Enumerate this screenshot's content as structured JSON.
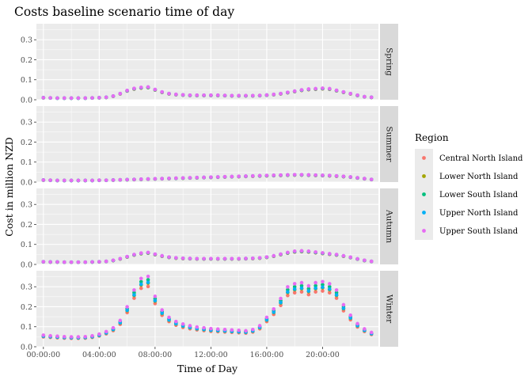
{
  "chart_data": {
    "type": "scatter",
    "title": "Costs baseline scenario time of day",
    "xlabel": "Time of Day",
    "ylabel": "Cost in million NZD",
    "x_tick_labels": [
      "00:00:00",
      "04:00:00",
      "08:00:00",
      "12:00:00",
      "16:00:00",
      "20:00:00"
    ],
    "x_tick_hours": [
      0,
      4,
      8,
      12,
      16,
      20
    ],
    "xlim_hours": [
      -0.5,
      24.0
    ],
    "ylim": [
      0,
      0.38
    ],
    "y_ticks": [
      0.0,
      0.1,
      0.2,
      0.3
    ],
    "y_tick_labels": [
      "0.0",
      "0.1",
      "0.2",
      "0.3"
    ],
    "grid": true,
    "legend_position": "right",
    "legend_title": "Region",
    "x_hours": [
      0.0,
      0.5,
      1.0,
      1.5,
      2.0,
      2.5,
      3.0,
      3.5,
      4.0,
      4.5,
      5.0,
      5.5,
      6.0,
      6.5,
      7.0,
      7.5,
      8.0,
      8.5,
      9.0,
      9.5,
      10.0,
      10.5,
      11.0,
      11.5,
      12.0,
      12.5,
      13.0,
      13.5,
      14.0,
      14.5,
      15.0,
      15.5,
      16.0,
      16.5,
      17.0,
      17.5,
      18.0,
      18.5,
      19.0,
      19.5,
      20.0,
      20.5,
      21.0,
      21.5,
      22.0,
      22.5,
      23.0,
      23.5
    ],
    "series": [
      {
        "name": "Central North Island",
        "color": "#F8766D",
        "offsets": [
          0.0,
          0.0,
          0.0,
          0.0
        ],
        "winter_scale": 0.9
      },
      {
        "name": "Lower North Island",
        "color": "#A3A500",
        "offsets": [
          0.0,
          0.0,
          0.0,
          0.0
        ],
        "winter_scale": 0.95
      },
      {
        "name": "Lower South Island",
        "color": "#00BF7D",
        "offsets": [
          0.0,
          0.0,
          0.0,
          0.0
        ],
        "winter_scale": 1.0
      },
      {
        "name": "Upper North Island",
        "color": "#00B0F6",
        "offsets": [
          0.0,
          0.0,
          0.0,
          0.0
        ],
        "winter_scale": 0.96
      },
      {
        "name": "Upper South Island",
        "color": "#E76BF3",
        "offsets": [
          0.0,
          0.0,
          0.0,
          0.0
        ],
        "winter_scale": 1.05
      }
    ],
    "facets": [
      {
        "label": "Spring",
        "values": [
          0.01,
          0.009,
          0.008,
          0.008,
          0.008,
          0.008,
          0.008,
          0.009,
          0.01,
          0.012,
          0.018,
          0.03,
          0.045,
          0.055,
          0.06,
          0.062,
          0.05,
          0.038,
          0.03,
          0.026,
          0.024,
          0.022,
          0.022,
          0.022,
          0.022,
          0.022,
          0.021,
          0.02,
          0.02,
          0.02,
          0.02,
          0.021,
          0.023,
          0.026,
          0.03,
          0.036,
          0.042,
          0.048,
          0.052,
          0.054,
          0.056,
          0.054,
          0.046,
          0.038,
          0.03,
          0.022,
          0.015,
          0.012
        ]
      },
      {
        "label": "Summer",
        "values": [
          0.01,
          0.009,
          0.008,
          0.008,
          0.008,
          0.008,
          0.008,
          0.008,
          0.009,
          0.009,
          0.01,
          0.011,
          0.012,
          0.013,
          0.014,
          0.015,
          0.016,
          0.017,
          0.018,
          0.019,
          0.02,
          0.021,
          0.022,
          0.023,
          0.024,
          0.025,
          0.026,
          0.027,
          0.028,
          0.029,
          0.03,
          0.031,
          0.032,
          0.033,
          0.034,
          0.035,
          0.036,
          0.036,
          0.035,
          0.034,
          0.033,
          0.032,
          0.03,
          0.028,
          0.025,
          0.021,
          0.017,
          0.013
        ]
      },
      {
        "label": "Autumn",
        "values": [
          0.013,
          0.012,
          0.012,
          0.011,
          0.011,
          0.011,
          0.011,
          0.012,
          0.013,
          0.015,
          0.02,
          0.028,
          0.038,
          0.048,
          0.055,
          0.058,
          0.05,
          0.042,
          0.036,
          0.032,
          0.03,
          0.029,
          0.028,
          0.028,
          0.028,
          0.028,
          0.028,
          0.028,
          0.028,
          0.029,
          0.03,
          0.032,
          0.036,
          0.042,
          0.05,
          0.058,
          0.064,
          0.066,
          0.064,
          0.06,
          0.056,
          0.052,
          0.048,
          0.042,
          0.035,
          0.027,
          0.02,
          0.015
        ]
      },
      {
        "label": "Winter",
        "values": [
          0.055,
          0.052,
          0.05,
          0.048,
          0.047,
          0.047,
          0.048,
          0.052,
          0.06,
          0.072,
          0.09,
          0.125,
          0.19,
          0.27,
          0.325,
          0.335,
          0.24,
          0.175,
          0.14,
          0.12,
          0.108,
          0.1,
          0.094,
          0.09,
          0.086,
          0.084,
          0.082,
          0.08,
          0.078,
          0.076,
          0.082,
          0.1,
          0.14,
          0.18,
          0.23,
          0.285,
          0.3,
          0.305,
          0.29,
          0.305,
          0.31,
          0.3,
          0.27,
          0.2,
          0.15,
          0.11,
          0.085,
          0.068
        ]
      }
    ]
  }
}
